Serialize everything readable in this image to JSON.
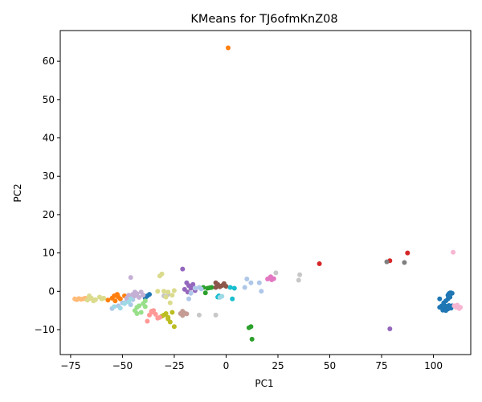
{
  "chart_data": {
    "type": "scatter",
    "title": "KMeans for TJ6ofmKnZ08",
    "xlabel": "PC1",
    "ylabel": "PC2",
    "xlim": [
      -80,
      118
    ],
    "ylim": [
      -16.5,
      68
    ],
    "xticks": [
      -75,
      -50,
      -25,
      0,
      25,
      50,
      75,
      100
    ],
    "yticks": [
      -10,
      0,
      10,
      20,
      30,
      40,
      50,
      60
    ],
    "grid": false,
    "legend": "none",
    "series": [
      {
        "color": "#1f77b4",
        "points": [
          [
            103,
            -4.2
          ],
          [
            104,
            -3.8
          ],
          [
            104.5,
            -4.5
          ],
          [
            105,
            -3.6
          ],
          [
            105.5,
            -4.8
          ],
          [
            106,
            -3.9
          ],
          [
            106.5,
            -4.3
          ],
          [
            107,
            -4.6
          ],
          [
            107.5,
            -3.7
          ],
          [
            108,
            -4.1
          ],
          [
            108.5,
            -4.4
          ],
          [
            109,
            -3.8
          ],
          [
            105,
            -3.0
          ],
          [
            106,
            -2.5
          ],
          [
            107,
            -2.0
          ],
          [
            107,
            -1.0
          ],
          [
            107.5,
            -0.6
          ],
          [
            108,
            -0.4
          ],
          [
            108.5,
            -0.4
          ],
          [
            109,
            -0.5
          ],
          [
            108,
            -1.5
          ],
          [
            103,
            -2
          ],
          [
            104.5,
            -4.9
          ],
          [
            106,
            -5.0
          ],
          [
            -37,
            -0.8
          ],
          [
            -38,
            -1.2
          ],
          [
            -39,
            -1.8
          ],
          [
            -40,
            -1.0
          ]
        ]
      },
      {
        "color": "#ff7f0e",
        "points": [
          [
            1,
            63.5
          ],
          [
            -57,
            -2.3
          ],
          [
            -55,
            -1.8
          ],
          [
            -54,
            -1.2
          ],
          [
            -53,
            -1.0
          ],
          [
            -52,
            -1.5
          ],
          [
            -51,
            -2.0
          ],
          [
            -52.5,
            -0.8
          ],
          [
            -53.5,
            -2.5
          ],
          [
            -49,
            -1.2
          ]
        ]
      },
      {
        "color": "#2ca02c",
        "points": [
          [
            11,
            -9.5
          ],
          [
            12,
            -9.2
          ],
          [
            12.5,
            -12.5
          ],
          [
            -10,
            -0.4
          ],
          [
            -9,
            0.8
          ],
          [
            -8,
            0.9
          ],
          [
            -11,
            1.0
          ],
          [
            -7,
            1.0
          ]
        ]
      },
      {
        "color": "#d62728",
        "points": [
          [
            45,
            7.2
          ],
          [
            79,
            8.0
          ],
          [
            87.5,
            10.0
          ]
        ]
      },
      {
        "color": "#9467bd",
        "points": [
          [
            79,
            -9.8
          ],
          [
            -21,
            5.8
          ],
          [
            -19,
            2.2
          ],
          [
            -18,
            1.5
          ],
          [
            -17,
            0.8
          ],
          [
            -20,
            0.5
          ],
          [
            -16,
            1.8
          ],
          [
            -15,
            0.2
          ],
          [
            -18.5,
            -0.2
          ]
        ]
      },
      {
        "color": "#8c564b",
        "points": [
          [
            -5,
            1.0
          ],
          [
            -4,
            1.8
          ],
          [
            -3,
            1.2
          ],
          [
            -2,
            1.5
          ],
          [
            -1,
            2.0
          ],
          [
            0,
            1.3
          ],
          [
            -5,
            2.2
          ]
        ]
      },
      {
        "color": "#e377c2",
        "points": [
          [
            20,
            3.2
          ],
          [
            21,
            3.5
          ],
          [
            22,
            3.0
          ],
          [
            21.5,
            3.8
          ],
          [
            23,
            3.3
          ]
        ]
      },
      {
        "color": "#7f7f7f",
        "points": [
          [
            77.5,
            7.7
          ],
          [
            86,
            7.5
          ]
        ]
      },
      {
        "color": "#bcbd22",
        "points": [
          [
            -30,
            -6.2
          ],
          [
            -29,
            -5.8
          ],
          [
            -28,
            -6.8
          ],
          [
            -27,
            -8.0
          ],
          [
            -26,
            -5.5
          ],
          [
            -25,
            -9.2
          ],
          [
            -28,
            -7.2
          ],
          [
            -31,
            -6.5
          ]
        ]
      },
      {
        "color": "#17becf",
        "points": [
          [
            -4,
            -1.5
          ],
          [
            2,
            1.0
          ],
          [
            3,
            -2.0
          ],
          [
            4,
            0.8
          ],
          [
            -3.5,
            -1.2
          ]
        ]
      },
      {
        "color": "#aec7e8",
        "points": [
          [
            10,
            3.2
          ],
          [
            12,
            2.2
          ],
          [
            16,
            2.2
          ],
          [
            17,
            0.0
          ],
          [
            9,
            1.0
          ],
          [
            -15,
            0.8
          ],
          [
            -12,
            0.6
          ],
          [
            -13,
            1.0
          ],
          [
            -18,
            -2.0
          ],
          [
            -17,
            -0.5
          ],
          [
            -55,
            -4.5
          ],
          [
            -52,
            -3.8
          ],
          [
            -50,
            -3.0
          ],
          [
            -48,
            -2.5
          ],
          [
            -46,
            -3.5
          ],
          [
            -45,
            -2.2
          ]
        ]
      },
      {
        "color": "#ffbb78",
        "points": [
          [
            -73,
            -2.0
          ],
          [
            -72,
            -2.2
          ],
          [
            -71,
            -1.9
          ],
          [
            -70,
            -2.1
          ],
          [
            -69,
            -2.0
          ],
          [
            -68,
            -1.8
          ],
          [
            -67,
            -2.0
          ],
          [
            -66,
            -1.9
          ]
        ]
      },
      {
        "color": "#98df8a",
        "points": [
          [
            -44,
            -5.0
          ],
          [
            -43,
            -4.2
          ],
          [
            -42,
            -3.8
          ],
          [
            -41,
            -5.5
          ],
          [
            -40,
            -3.2
          ],
          [
            -39,
            -4.0
          ],
          [
            -43,
            -5.8
          ],
          [
            -39,
            -2.5
          ]
        ]
      },
      {
        "color": "#ff9896",
        "points": [
          [
            -38,
            -7.8
          ],
          [
            -37,
            -6.2
          ],
          [
            -36,
            -5.5
          ],
          [
            -35,
            -5.0
          ],
          [
            -34,
            -6.0
          ],
          [
            -36,
            -5.2
          ],
          [
            -33,
            -7.0
          ],
          [
            -32,
            -6.8
          ]
        ]
      },
      {
        "color": "#c5b0d5",
        "points": [
          [
            -46,
            3.6
          ],
          [
            -47,
            -1.0
          ],
          [
            -46,
            -1.5
          ],
          [
            -45,
            -0.8
          ],
          [
            -44,
            -1.2
          ],
          [
            -43,
            -0.6
          ],
          [
            -42,
            -1.6
          ],
          [
            -41,
            -0.2
          ],
          [
            -40,
            -1.0
          ],
          [
            -48,
            -1.8
          ],
          [
            -44,
            -0.2
          ]
        ]
      },
      {
        "color": "#c49c94",
        "points": [
          [
            -22,
            -5.8
          ],
          [
            -21,
            -6.3
          ],
          [
            -20,
            -5.7
          ],
          [
            -19,
            -5.9
          ],
          [
            -21,
            -5.2
          ]
        ]
      },
      {
        "color": "#f7b6d2",
        "points": [
          [
            109.5,
            10.2
          ],
          [
            110,
            -3.8
          ],
          [
            111,
            -4.2
          ],
          [
            112,
            -4.0
          ],
          [
            113,
            -4.2
          ],
          [
            111.5,
            -3.6
          ],
          [
            112.5,
            -4.5
          ]
        ]
      },
      {
        "color": "#c7c7c7",
        "points": [
          [
            35,
            2.9
          ],
          [
            35.5,
            4.3
          ],
          [
            24,
            4.8
          ],
          [
            -13,
            -6.2
          ],
          [
            -5,
            -6.2
          ],
          [
            -30,
            -1.2
          ],
          [
            -28,
            -0.8
          ]
        ]
      },
      {
        "color": "#dbdb8d",
        "points": [
          [
            -67,
            -2.3
          ],
          [
            -66,
            -1.2
          ],
          [
            -65,
            -1.8
          ],
          [
            -64,
            -2.5
          ],
          [
            -63,
            -2.2
          ],
          [
            -61,
            -1.5
          ],
          [
            -59,
            -1.8
          ],
          [
            -60,
            -2.0
          ],
          [
            -32,
            4.0
          ],
          [
            -31,
            4.5
          ],
          [
            -30,
            0.0
          ],
          [
            -28,
            -0.2
          ],
          [
            -27,
            -3.0
          ],
          [
            -26,
            -1.0
          ],
          [
            -25,
            0.2
          ],
          [
            -33,
            0.0
          ],
          [
            -29,
            -1.5
          ]
        ]
      },
      {
        "color": "#9edae5",
        "points": [
          [
            -54,
            -4.0
          ],
          [
            -51,
            -4.4
          ],
          [
            -49,
            -3.2
          ],
          [
            -47,
            -2.8
          ],
          [
            -46,
            -2.0
          ],
          [
            -2,
            -1.3
          ],
          [
            -3,
            -1.6
          ]
        ]
      }
    ]
  }
}
